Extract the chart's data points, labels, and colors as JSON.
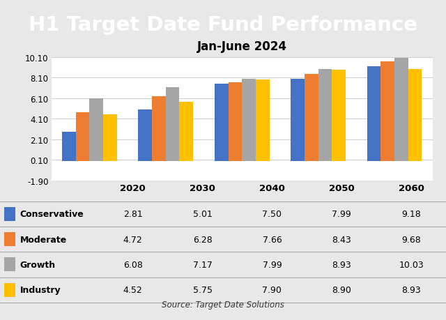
{
  "title": "H1 Target Date Fund Performance",
  "subtitle": "Jan-June 2024",
  "categories": [
    "2020",
    "2030",
    "2040",
    "2050",
    "2060"
  ],
  "series": {
    "Conservative": [
      2.81,
      5.01,
      7.5,
      7.99,
      9.18
    ],
    "Moderate": [
      4.72,
      6.28,
      7.66,
      8.43,
      9.68
    ],
    "Growth": [
      6.08,
      7.17,
      7.99,
      8.93,
      10.03
    ],
    "Industry": [
      4.52,
      5.75,
      7.9,
      8.9,
      8.93
    ]
  },
  "colors": {
    "Conservative": "#4472C4",
    "Moderate": "#ED7D31",
    "Growth": "#A5A5A5",
    "Industry": "#FFC000"
  },
  "ylim": [
    -1.9,
    10.1
  ],
  "yticks": [
    -1.9,
    0.1,
    2.1,
    4.1,
    6.1,
    8.1,
    10.1
  ],
  "title_bg": "#000000",
  "title_color": "#ffffff",
  "source_text": "Source: Target Date Solutions",
  "bar_width": 0.18,
  "fig_bg": "#e8e8e8"
}
